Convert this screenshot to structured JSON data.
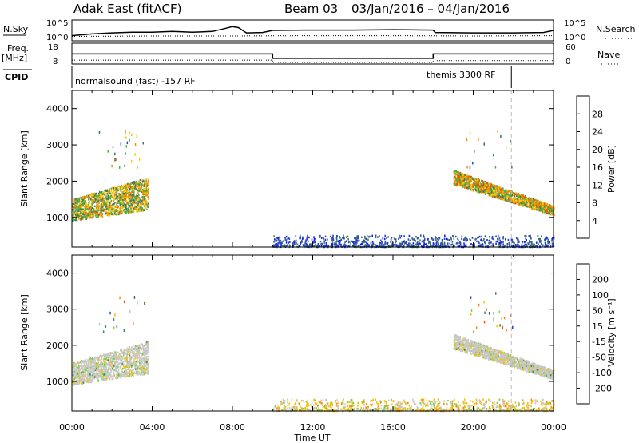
{
  "header": {
    "title": "Adak East (fitACF)",
    "beam": "Beam 03",
    "dates": "03/Jan/2016 – 04/Jan/2016"
  },
  "panels": {
    "nsky": {
      "label": "N.Sky",
      "left_ticks": [
        "10^5",
        "10^0"
      ],
      "right_ticks": [
        "10^5",
        "10^0"
      ],
      "right_label": "N.Search",
      "series_noise_sky": [
        [
          0.0,
          1.0
        ],
        [
          1.0,
          1.5
        ],
        [
          2.0,
          1.8
        ],
        [
          3.0,
          2.0
        ],
        [
          4.0,
          2.0
        ],
        [
          5.0,
          2.2
        ],
        [
          6.0,
          2.0
        ],
        [
          7.0,
          2.2
        ],
        [
          7.6,
          3.0
        ],
        [
          8.0,
          3.6
        ],
        [
          8.3,
          3.3
        ],
        [
          8.7,
          1.8
        ],
        [
          9.5,
          1.9
        ],
        [
          10.0,
          2.5
        ],
        [
          12.0,
          2.6
        ],
        [
          14.0,
          2.6
        ],
        [
          16.0,
          2.7
        ],
        [
          18.0,
          2.6
        ],
        [
          18.1,
          1.9
        ],
        [
          20.0,
          1.8
        ],
        [
          22.0,
          1.8
        ],
        [
          23.5,
          1.9
        ],
        [
          24.0,
          2.5
        ]
      ],
      "series_noise_search": [
        [
          0.0,
          0.8
        ],
        [
          4.0,
          0.9
        ],
        [
          8.0,
          0.9
        ],
        [
          12.0,
          1.0
        ],
        [
          16.0,
          1.0
        ],
        [
          20.0,
          0.9
        ],
        [
          24.0,
          1.0
        ]
      ]
    },
    "freq": {
      "label": "Freq.",
      "unit": "[MHz]",
      "left_ticks": [
        "18",
        "8"
      ],
      "right_ticks": [
        "60",
        "0"
      ],
      "right_label": "Nave",
      "series_freq": [
        [
          0.0,
          12.8
        ],
        [
          10.0,
          12.8
        ],
        [
          10.0,
          10.3
        ],
        [
          18.0,
          10.3
        ],
        [
          18.0,
          12.8
        ],
        [
          24.0,
          12.8
        ]
      ],
      "series_nave": [
        [
          0.0,
          8
        ],
        [
          10.0,
          8
        ],
        [
          10.0,
          0
        ],
        [
          18.0,
          0
        ],
        [
          18.0,
          6
        ],
        [
          24.0,
          6
        ]
      ]
    },
    "cpid": {
      "label": "CPID",
      "segments": [
        {
          "label": "normalsound (fast) -157 RF",
          "start": 0.0,
          "end": 21.9
        },
        {
          "label": "themis 3300 RF",
          "start": 21.9,
          "end": 24.0
        }
      ]
    }
  },
  "chart_data": [
    {
      "type": "heatmap",
      "quantity": "Power",
      "ylabel": "Slant Range [km]",
      "ylim": [
        180,
        4500
      ],
      "y_ticks": [
        1000,
        2000,
        3000,
        4000
      ],
      "xlim_hours": [
        0,
        24
      ],
      "colorbar": {
        "label": "Power [dB]",
        "ticks": [
          "4",
          "8",
          "12",
          "16",
          "20",
          "24",
          "28"
        ],
        "colors": [
          "#1a1aff",
          "#284bb4",
          "#3d7a5a",
          "#4fb04a",
          "#f0d000",
          "#ff8a00",
          "#ff4d00",
          "#e00000"
        ]
      },
      "regions": [
        {
          "t0": 0.0,
          "t1": 3.8,
          "r0": 850,
          "r1": 2100,
          "peak": 20
        },
        {
          "t0": 19.0,
          "t1": 24.0,
          "r0": 1050,
          "r1": 2400,
          "peak": 22
        },
        {
          "t0": 10.0,
          "t1": 24.0,
          "r0": 180,
          "r1": 500,
          "peak": 8
        }
      ]
    },
    {
      "type": "heatmap",
      "quantity": "Velocity",
      "ylabel": "Slant Range [km]",
      "ylim": [
        180,
        4500
      ],
      "y_ticks": [
        1000,
        2000,
        3000,
        4000
      ],
      "xlim_hours": [
        0,
        24
      ],
      "x_ticks": [
        "00:00",
        "04:00",
        "08:00",
        "12:00",
        "16:00",
        "20:00",
        "00:00"
      ],
      "xlabel": "Time UT",
      "colorbar": {
        "label": "Velocity [m s⁻¹]",
        "ticks": [
          "-200",
          "-100",
          "-50",
          "-15",
          "15",
          "50",
          "100",
          "200"
        ],
        "colors": [
          "#e00000",
          "#ff4d00",
          "#ff8a00",
          "#f5c000",
          "#c8c8c8",
          "#7ad04a",
          "#3d8a5a",
          "#284bb4",
          "#1a1aff"
        ]
      },
      "regions": [
        {
          "t0": 0.0,
          "t1": 3.8,
          "r0": 850,
          "r1": 2100,
          "v": 0
        },
        {
          "t0": 19.0,
          "t1": 24.0,
          "r0": 1050,
          "r1": 2400,
          "v": 0
        },
        {
          "t0": 10.0,
          "t1": 24.0,
          "r0": 180,
          "r1": 500,
          "v": -30
        }
      ]
    }
  ]
}
